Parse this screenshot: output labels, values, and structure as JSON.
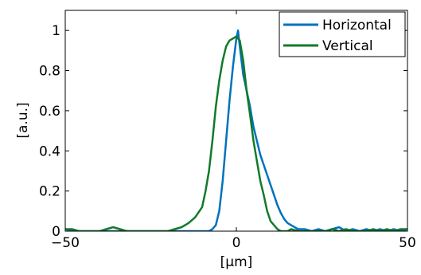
{
  "chart_data": {
    "type": "line",
    "xlabel": "[µm]",
    "ylabel": "[a.u.]",
    "xlim": [
      -50,
      50
    ],
    "ylim": [
      0,
      1.1
    ],
    "xticks": [
      -50,
      0,
      50
    ],
    "xtick_labels": [
      "−50",
      "0",
      "50"
    ],
    "yticks": [
      0,
      0.2,
      0.4,
      0.6,
      0.8,
      1
    ],
    "ytick_labels": [
      "0",
      "0.2",
      "0.4",
      "0.6",
      "0.8",
      "1"
    ],
    "grid": false,
    "legend_position": "top-right",
    "series": [
      {
        "name": "Horizontal",
        "color": "#0072bd",
        "x": [
          -50,
          -48,
          -46,
          -44,
          -42,
          -40,
          -38,
          -36,
          -34,
          -32,
          -30,
          -28,
          -26,
          -24,
          -22,
          -20,
          -18,
          -16,
          -14,
          -12,
          -10,
          -8,
          -7,
          -6,
          -5,
          -4,
          -3,
          -2,
          -1,
          0,
          0.5,
          1,
          2,
          3,
          4,
          5,
          6,
          7,
          8,
          9,
          10,
          11,
          12,
          13,
          14,
          15,
          16,
          18,
          20,
          22,
          24,
          26,
          28,
          30,
          32,
          34,
          36,
          38,
          40,
          42,
          44,
          46,
          48,
          50
        ],
        "y": [
          0.01,
          0,
          0,
          0,
          0,
          0,
          0,
          0,
          0,
          0,
          0,
          0,
          0,
          0,
          0,
          0,
          0,
          0,
          0,
          0,
          0,
          0,
          0.01,
          0.03,
          0.1,
          0.25,
          0.45,
          0.65,
          0.82,
          0.96,
          1.0,
          0.92,
          0.78,
          0.7,
          0.62,
          0.52,
          0.45,
          0.38,
          0.33,
          0.28,
          0.23,
          0.18,
          0.13,
          0.09,
          0.06,
          0.04,
          0.03,
          0.01,
          0.01,
          0,
          0.01,
          0,
          0.01,
          0.02,
          0,
          0.01,
          0,
          0.01,
          0,
          0.01,
          0,
          0.01,
          0,
          0.01
        ]
      },
      {
        "name": "Vertical",
        "color": "#117a2a",
        "x": [
          -50,
          -48,
          -46,
          -44,
          -42,
          -40,
          -38,
          -36,
          -34,
          -32,
          -30,
          -28,
          -26,
          -24,
          -22,
          -20,
          -18,
          -16,
          -14,
          -12,
          -10,
          -9,
          -8,
          -7,
          -6,
          -5,
          -4,
          -3,
          -2,
          -1,
          0,
          1,
          2,
          3,
          4,
          5,
          6,
          7,
          8,
          9,
          10,
          11,
          12,
          13,
          14,
          15,
          16,
          18,
          20,
          22,
          24,
          26,
          28,
          30,
          32,
          34,
          36,
          38,
          40,
          42,
          44,
          46,
          48,
          50
        ],
        "y": [
          0.01,
          0.01,
          0,
          0,
          0,
          0,
          0.01,
          0.02,
          0.01,
          0,
          0,
          0,
          0,
          0,
          0,
          0,
          0.01,
          0.02,
          0.04,
          0.07,
          0.12,
          0.2,
          0.3,
          0.45,
          0.62,
          0.75,
          0.85,
          0.92,
          0.95,
          0.96,
          0.97,
          0.95,
          0.85,
          0.7,
          0.58,
          0.45,
          0.35,
          0.25,
          0.18,
          0.1,
          0.05,
          0.03,
          0.01,
          0,
          0,
          0,
          0.01,
          0,
          0,
          0,
          0,
          0,
          0.01,
          0,
          0.01,
          0,
          0,
          0,
          0.01,
          0,
          0.01,
          0,
          0.01,
          0.01
        ]
      }
    ]
  }
}
